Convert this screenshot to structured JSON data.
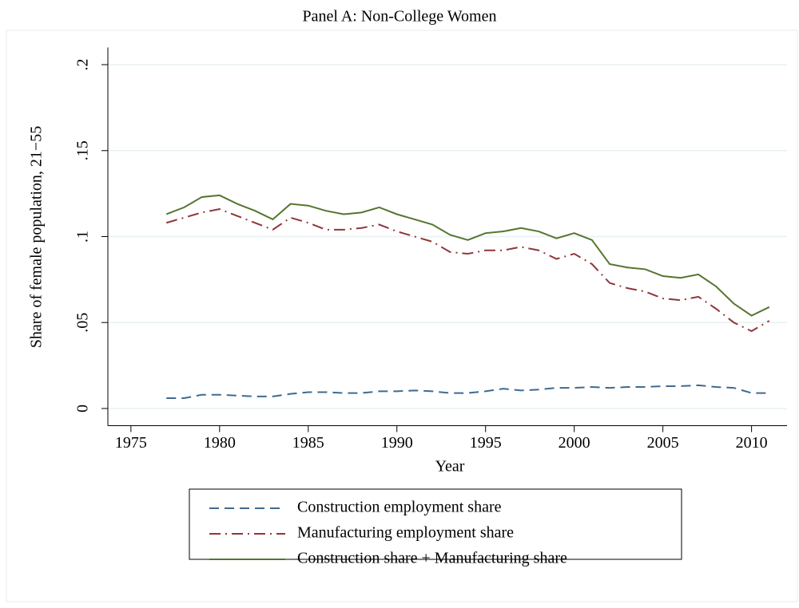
{
  "chart_data": {
    "type": "line",
    "title": "Panel A: Non-College Women",
    "x_label": "Year",
    "y_label": "Share of female population, 21−55",
    "x": [
      1977,
      1978,
      1979,
      1980,
      1981,
      1982,
      1983,
      1984,
      1985,
      1986,
      1987,
      1988,
      1989,
      1990,
      1991,
      1992,
      1993,
      1994,
      1995,
      1996,
      1997,
      1998,
      1999,
      2000,
      2001,
      2002,
      2003,
      2004,
      2005,
      2006,
      2007,
      2008,
      2009,
      2010,
      2011
    ],
    "series": [
      {
        "name": "Construction employment share",
        "color": "#3f6a8f",
        "dash": "dash",
        "values": [
          0.006,
          0.006,
          0.008,
          0.008,
          0.0075,
          0.007,
          0.007,
          0.0085,
          0.0095,
          0.0095,
          0.009,
          0.009,
          0.01,
          0.01,
          0.0105,
          0.01,
          0.009,
          0.009,
          0.01,
          0.0115,
          0.0105,
          0.011,
          0.012,
          0.012,
          0.0125,
          0.012,
          0.0125,
          0.0125,
          0.013,
          0.013,
          0.0135,
          0.0125,
          0.012,
          0.009,
          0.009
        ]
      },
      {
        "name": "Manufacturing employment share",
        "color": "#90353b",
        "dash": "dashdot",
        "values": [
          0.108,
          0.111,
          0.114,
          0.116,
          0.112,
          0.108,
          0.104,
          0.111,
          0.108,
          0.104,
          0.104,
          0.105,
          0.107,
          0.103,
          0.1,
          0.097,
          0.091,
          0.09,
          0.092,
          0.092,
          0.094,
          0.092,
          0.087,
          0.09,
          0.084,
          0.073,
          0.07,
          0.068,
          0.064,
          0.063,
          0.065,
          0.058,
          0.05,
          0.045,
          0.051
        ]
      },
      {
        "name": "Construction share + Manufacturing share",
        "color": "#55752f",
        "dash": "solid",
        "values": [
          0.113,
          0.117,
          0.123,
          0.124,
          0.119,
          0.115,
          0.11,
          0.119,
          0.118,
          0.115,
          0.113,
          0.114,
          0.117,
          0.113,
          0.11,
          0.107,
          0.101,
          0.098,
          0.102,
          0.103,
          0.105,
          0.103,
          0.099,
          0.102,
          0.098,
          0.084,
          0.082,
          0.081,
          0.077,
          0.076,
          0.078,
          0.071,
          0.061,
          0.054,
          0.059
        ]
      }
    ],
    "xlim": [
      1973.7,
      2012
    ],
    "xticks": [
      1975,
      1980,
      1985,
      1990,
      1995,
      2000,
      2005,
      2010
    ],
    "ylim": [
      -0.01,
      0.21
    ],
    "yticks": [
      0,
      {
        "value": 0.05,
        "label": ".05"
      },
      {
        "value": 0.1,
        "label": ".1"
      },
      {
        "value": 0.15,
        "label": ".15"
      },
      {
        "value": 0.2,
        "label": ".2"
      }
    ],
    "grid": true,
    "legend": "bottom"
  }
}
